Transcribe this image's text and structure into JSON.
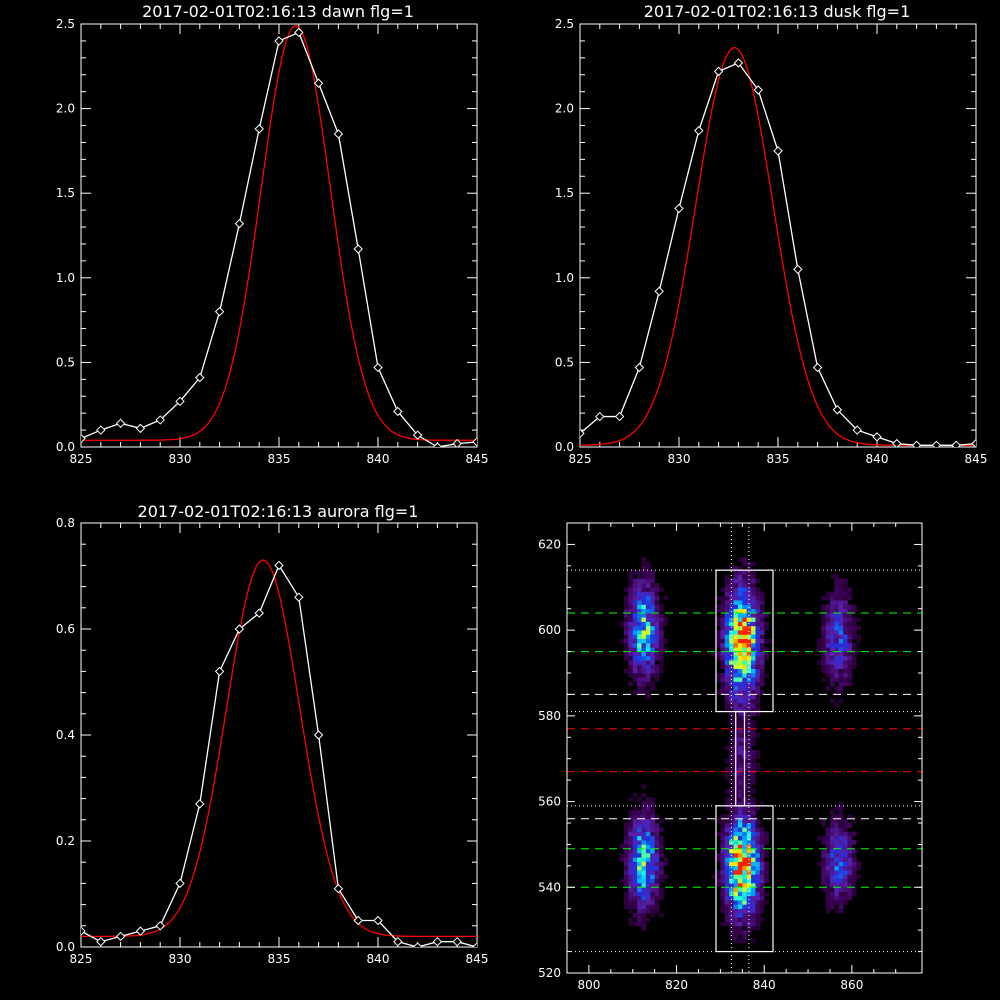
{
  "colors": {
    "background": "#000000",
    "axes": "#ffffff",
    "fit": "#ff0000",
    "data": "#ffffff"
  },
  "chart_data": [
    {
      "type": "line",
      "title": "2017-02-01T02:16:13 dawn flg=1",
      "xlim": [
        825,
        845
      ],
      "ylim": [
        0,
        2.5
      ],
      "xticks": [
        "825",
        "830",
        "835",
        "840",
        "845"
      ],
      "yticks": [
        "0.0",
        "0.5",
        "1.0",
        "1.5",
        "2.0",
        "2.5"
      ],
      "series": [
        {
          "role": "data",
          "marker": "diamond",
          "color": "#ffffff",
          "x": [
            825,
            826,
            827,
            828,
            829,
            830,
            831,
            832,
            833,
            834,
            835,
            836,
            837,
            838,
            839,
            840,
            841,
            842,
            843,
            844,
            845
          ],
          "y": [
            0.05,
            0.1,
            0.14,
            0.11,
            0.16,
            0.27,
            0.41,
            0.8,
            1.32,
            1.88,
            2.4,
            2.45,
            2.15,
            1.85,
            1.17,
            0.47,
            0.21,
            0.07,
            0.0,
            0.02,
            0.03
          ]
        },
        {
          "role": "fit",
          "color": "#ff0000",
          "gaussian": {
            "amp": 2.45,
            "center": 835.85,
            "sigma": 1.75,
            "base": 0.04
          }
        }
      ]
    },
    {
      "type": "line",
      "title": "2017-02-01T02:16:13 dusk flg=1",
      "xlim": [
        825,
        845
      ],
      "ylim": [
        0,
        2.5
      ],
      "xticks": [
        "825",
        "830",
        "835",
        "840",
        "845"
      ],
      "yticks": [
        "0.0",
        "0.5",
        "1.0",
        "1.5",
        "2.0",
        "2.5"
      ],
      "series": [
        {
          "role": "data",
          "marker": "diamond",
          "color": "#ffffff",
          "x": [
            825,
            826,
            827,
            828,
            829,
            830,
            831,
            832,
            833,
            834,
            835,
            836,
            837,
            838,
            839,
            840,
            841,
            842,
            843,
            844,
            845
          ],
          "y": [
            0.08,
            0.18,
            0.18,
            0.47,
            0.92,
            1.41,
            1.87,
            2.22,
            2.27,
            2.11,
            1.75,
            1.05,
            0.47,
            0.22,
            0.1,
            0.06,
            0.02,
            0.01,
            0.01,
            0.01,
            0.02
          ]
        },
        {
          "role": "fit",
          "color": "#ff0000",
          "gaussian": {
            "amp": 2.35,
            "center": 832.8,
            "sigma": 1.95,
            "base": 0.01
          }
        }
      ]
    },
    {
      "type": "line",
      "title": "2017-02-01T02:16:13 aurora flg=1",
      "xlim": [
        825,
        845
      ],
      "ylim": [
        0,
        0.8
      ],
      "xticks": [
        "825",
        "830",
        "835",
        "840",
        "845"
      ],
      "yticks": [
        "0.0",
        "0.2",
        "0.4",
        "0.6",
        "0.8"
      ],
      "series": [
        {
          "role": "data",
          "marker": "diamond",
          "color": "#ffffff",
          "x": [
            825,
            826,
            827,
            828,
            829,
            830,
            831,
            832,
            833,
            834,
            835,
            836,
            837,
            838,
            839,
            840,
            841,
            842,
            843,
            844,
            845
          ],
          "y": [
            0.03,
            0.01,
            0.02,
            0.03,
            0.04,
            0.12,
            0.27,
            0.52,
            0.6,
            0.63,
            0.72,
            0.66,
            0.4,
            0.11,
            0.05,
            0.05,
            0.01,
            0.0,
            0.01,
            0.01,
            0.0
          ]
        },
        {
          "role": "fit",
          "color": "#ff0000",
          "gaussian": {
            "amp": 0.71,
            "center": 834.2,
            "sigma": 1.85,
            "base": 0.02
          }
        }
      ]
    },
    {
      "type": "heatmap",
      "title": "",
      "xlim": [
        795,
        876
      ],
      "ylim": [
        520,
        625
      ],
      "xticks": [
        "800",
        "820",
        "840",
        "860"
      ],
      "yticks": [
        "520",
        "540",
        "560",
        "580",
        "600",
        "620"
      ],
      "colormap": [
        "#000000",
        "#3a0050",
        "#5a1fa8",
        "#2030e0",
        "#00a8ff",
        "#20ffd0",
        "#c8ff30",
        "#ffe000",
        "#ff2000"
      ],
      "sources": [
        {
          "x": 812.5,
          "y": 600,
          "sx": 2.2,
          "sy": 7,
          "amp": 0.55
        },
        {
          "x": 812.5,
          "y": 546,
          "sx": 2.2,
          "sy": 7,
          "amp": 0.55
        },
        {
          "x": 835,
          "y": 597,
          "sx": 2.4,
          "sy": 8,
          "amp": 0.95
        },
        {
          "x": 835,
          "y": 545,
          "sx": 2.4,
          "sy": 7,
          "amp": 1.0
        },
        {
          "x": 835,
          "y": 570,
          "sx": 1.8,
          "sy": 5,
          "amp": 0.2
        },
        {
          "x": 857,
          "y": 598,
          "sx": 2.2,
          "sy": 7,
          "amp": 0.32
        },
        {
          "x": 857,
          "y": 546,
          "sx": 2.2,
          "sy": 6,
          "amp": 0.35
        }
      ],
      "hlines": [
        {
          "y": 614,
          "style": "dotted",
          "color": "#ffffff"
        },
        {
          "y": 604,
          "style": "dashed",
          "color": "#00ff00"
        },
        {
          "y": 595,
          "style": "dashed",
          "color": "#00ff00"
        },
        {
          "y": 585,
          "style": "dashed",
          "color": "#ffffff"
        },
        {
          "y": 581,
          "style": "dotted",
          "color": "#ffffff"
        },
        {
          "y": 577,
          "style": "dashed",
          "color": "#ff0000"
        },
        {
          "y": 567,
          "style": "dashed",
          "color": "#ff0000"
        },
        {
          "y": 559,
          "style": "dotted",
          "color": "#ffffff"
        },
        {
          "y": 556,
          "style": "dashed",
          "color": "#ffffff"
        },
        {
          "y": 549,
          "style": "dashed",
          "color": "#00ff00"
        },
        {
          "y": 540,
          "style": "dashed",
          "color": "#00ff00"
        },
        {
          "y": 525,
          "style": "dotted",
          "color": "#ffffff"
        }
      ],
      "vlines": [
        {
          "x": 832.5,
          "style": "dotted",
          "color": "#ffffff"
        },
        {
          "x": 836.5,
          "style": "dotted",
          "color": "#ffffff"
        }
      ],
      "boxes": [
        {
          "x0": 829,
          "x1": 842,
          "y0": 581,
          "y1": 614
        },
        {
          "x0": 829,
          "x1": 842,
          "y0": 525,
          "y1": 559
        },
        {
          "x0": 833.5,
          "x1": 835.5,
          "y0": 559,
          "y1": 581
        }
      ]
    }
  ]
}
